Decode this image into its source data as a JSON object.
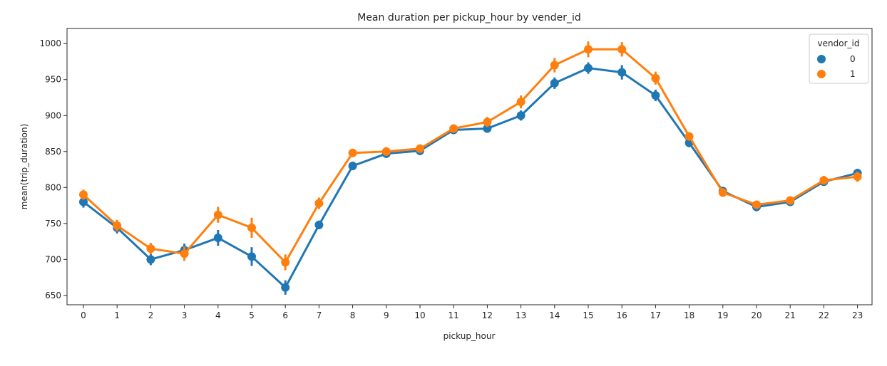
{
  "chart_data": {
    "type": "line",
    "title": "Mean duration per pickup_hour by vender_id",
    "xlabel": "pickup_hour",
    "ylabel": "mean(trip_duration)",
    "categories": [
      "0",
      "1",
      "2",
      "3",
      "4",
      "5",
      "6",
      "7",
      "8",
      "9",
      "10",
      "11",
      "12",
      "13",
      "14",
      "15",
      "16",
      "17",
      "18",
      "19",
      "20",
      "21",
      "22",
      "23"
    ],
    "yticks": [
      650,
      700,
      750,
      800,
      850,
      900,
      950,
      1000
    ],
    "ylim": [
      637,
      1021
    ],
    "legend": {
      "title": "vendor_id",
      "placement": "upper-right"
    },
    "grid": false,
    "series": [
      {
        "name": "0",
        "color": "#1f77b4",
        "values": [
          780,
          744,
          700,
          713,
          730,
          704,
          661,
          748,
          830,
          847,
          851,
          880,
          882,
          900,
          945,
          966,
          960,
          928,
          862,
          795,
          773,
          780,
          808,
          820
        ],
        "err": [
          8,
          8,
          8,
          9,
          11,
          13,
          10,
          6,
          6,
          6,
          6,
          5,
          6,
          7,
          8,
          8,
          10,
          8,
          6,
          6,
          6,
          5,
          5,
          6
        ]
      },
      {
        "name": "1",
        "color": "#ff7f0e",
        "values": [
          790,
          747,
          715,
          708,
          762,
          744,
          696,
          778,
          848,
          850,
          854,
          882,
          891,
          919,
          970,
          992,
          992,
          952,
          871,
          793,
          776,
          782,
          810,
          815
        ],
        "err": [
          7,
          8,
          8,
          10,
          11,
          14,
          11,
          8,
          5,
          6,
          6,
          5,
          7,
          9,
          10,
          11,
          10,
          9,
          6,
          6,
          5,
          5,
          6,
          7
        ]
      }
    ]
  }
}
